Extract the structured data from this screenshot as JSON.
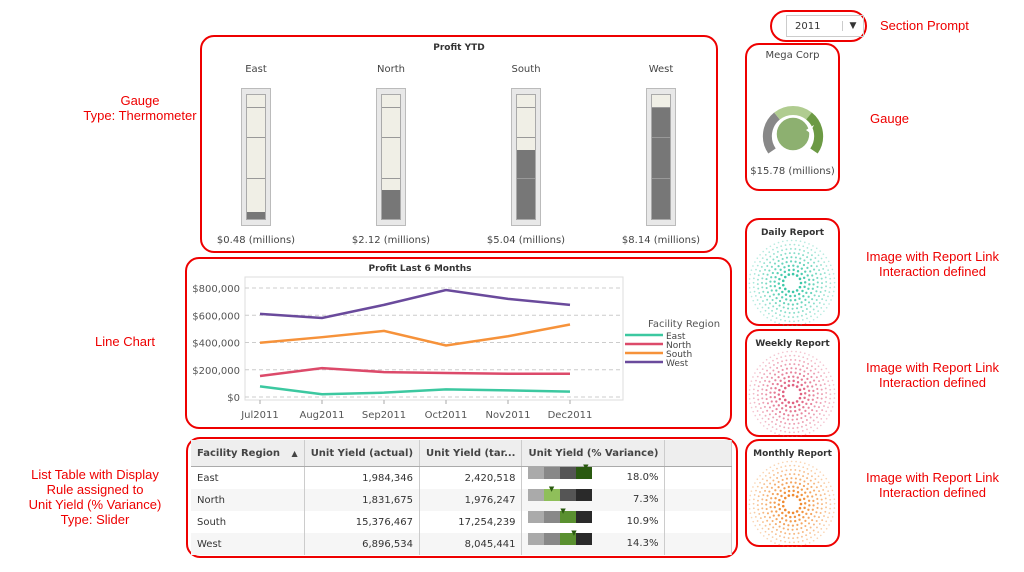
{
  "prompt": {
    "value": "2011",
    "annotation": "Section Prompt"
  },
  "thermometer": {
    "title": "Profit YTD",
    "max": 9,
    "annotation": "Gauge\nType: Thermometer",
    "items": [
      {
        "label": "East",
        "value": 0.48,
        "caption": "$0.48 (millions)"
      },
      {
        "label": "North",
        "value": 2.12,
        "caption": "$2.12 (millions)"
      },
      {
        "label": "South",
        "value": 5.04,
        "caption": "$5.04 (millions)"
      },
      {
        "label": "West",
        "value": 8.14,
        "caption": "$8.14 (millions)"
      }
    ]
  },
  "gauge": {
    "title": "Mega Corp",
    "caption": "$15.78 (millions)",
    "annotation": "Gauge"
  },
  "chart_data": {
    "type": "line",
    "title": "Profit Last 6 Months",
    "xlabel": "",
    "ylabel": "",
    "ylim": [
      0,
      800000
    ],
    "yticks": [
      "$800,000",
      "$600,000",
      "$400,000",
      "$200,000",
      "$0"
    ],
    "ytick_values": [
      800000,
      600000,
      400000,
      200000,
      0
    ],
    "categories": [
      "Jul2011",
      "Aug2011",
      "Sep2011",
      "Oct2011",
      "Nov2011",
      "Dec2011"
    ],
    "legend_title": "Facility Region",
    "legend": "right",
    "grid": true,
    "series": [
      {
        "name": "East",
        "color": "#3cc8a0",
        "values": [
          78000,
          20000,
          32000,
          56000,
          49000,
          39000
        ]
      },
      {
        "name": "North",
        "color": "#dc4a6a",
        "values": [
          154000,
          212000,
          183000,
          176000,
          171000,
          171000
        ]
      },
      {
        "name": "South",
        "color": "#f6923a",
        "values": [
          398000,
          439000,
          485000,
          378000,
          446000,
          532000
        ]
      },
      {
        "name": "West",
        "color": "#6a4a9c",
        "values": [
          610000,
          580000,
          676000,
          785000,
          720000,
          676000
        ]
      }
    ]
  },
  "line_annotation": "Line Chart",
  "table": {
    "annotation": "List Table with Display\nRule assigned to\nUnit Yield (% Variance)\nType: Slider",
    "slider_range": [
      0,
      20
    ],
    "headers": [
      "Facility Region",
      "Unit Yield (actual)",
      "Unit Yield (tar...",
      "Unit Yield (% Variance)"
    ],
    "rows": [
      {
        "region": "East",
        "actual": "1,984,346",
        "target": "2,420,518",
        "variance": "18.0%",
        "pct": 18.0
      },
      {
        "region": "North",
        "actual": "1,831,675",
        "target": "1,976,247",
        "variance": "7.3%",
        "pct": 7.3
      },
      {
        "region": "South",
        "actual": "15,376,467",
        "target": "17,254,239",
        "variance": "10.9%",
        "pct": 10.9
      },
      {
        "region": "West",
        "actual": "6,896,534",
        "target": "8,045,441",
        "variance": "14.3%",
        "pct": 14.3
      }
    ]
  },
  "reports": [
    {
      "title": "Daily Report",
      "color": "#3cc8a8",
      "annotation": "Image with Report Link\nInteraction defined"
    },
    {
      "title": "Weekly Report",
      "color": "#e06080",
      "annotation": "Image with Report Link\nInteraction defined"
    },
    {
      "title": "Monthly Report",
      "color": "#f08a30",
      "annotation": "Image with Report Link\nInteraction defined"
    }
  ]
}
